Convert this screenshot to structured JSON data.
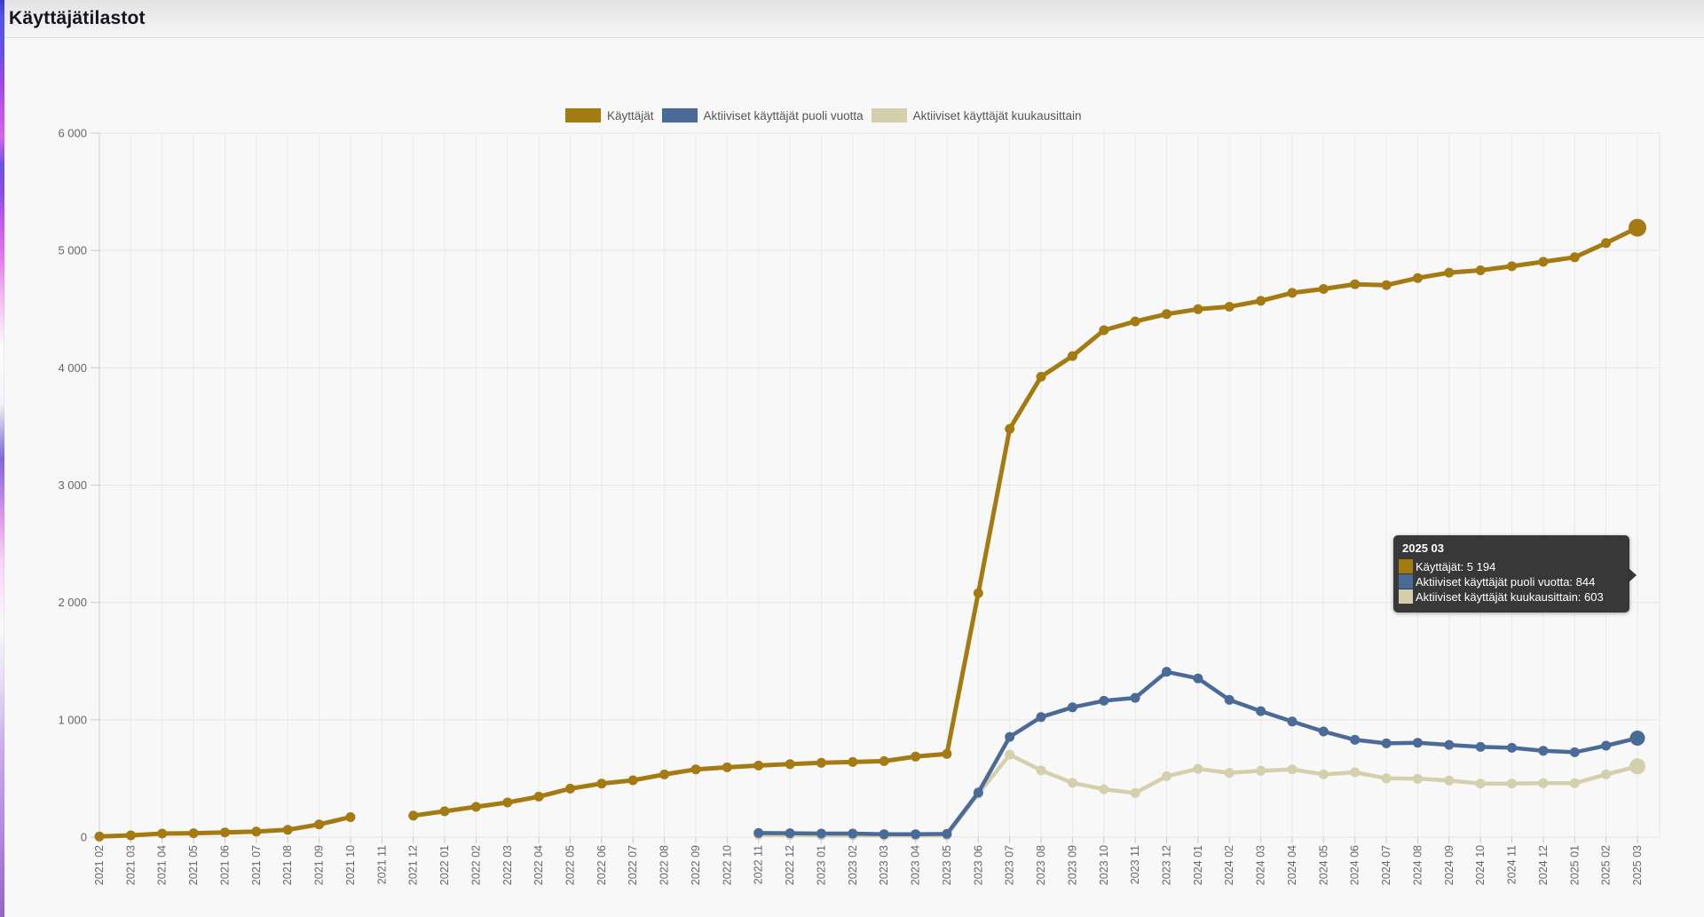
{
  "page": {
    "title": "Käyttäjätilastot"
  },
  "chart_data": {
    "type": "line",
    "title": "Käyttäjätilastot",
    "xlabel": "",
    "ylabel": "",
    "ylim": [
      0,
      6000
    ],
    "ytick_interval": 1000,
    "ytick_labels": [
      "0",
      "1 000",
      "2 000",
      "3 000",
      "4 000",
      "5 000",
      "6 000"
    ],
    "grid": true,
    "legend_position": "top",
    "categories": [
      "2021 02",
      "2021 03",
      "2021 04",
      "2021 05",
      "2021 06",
      "2021 07",
      "2021 08",
      "2021 09",
      "2021 10",
      "2021 11",
      "2021 12",
      "2022 01",
      "2022 02",
      "2022 03",
      "2022 04",
      "2022 05",
      "2022 06",
      "2022 07",
      "2022 08",
      "2022 09",
      "2022 10",
      "2022 11",
      "2022 12",
      "2023 01",
      "2023 02",
      "2023 03",
      "2023 04",
      "2023 05",
      "2023 06",
      "2023 07",
      "2023 08",
      "2023 09",
      "2023 10",
      "2023 11",
      "2023 12",
      "2024 01",
      "2024 02",
      "2024 03",
      "2024 04",
      "2024 05",
      "2024 06",
      "2024 07",
      "2024 08",
      "2024 09",
      "2024 10",
      "2024 11",
      "2024 12",
      "2025 01",
      "2025 02",
      "2025 03"
    ],
    "series": [
      {
        "name": "Käyttäjät",
        "color": "#a47a12",
        "values": [
          5,
          15,
          30,
          33,
          40,
          47,
          62,
          108,
          170,
          null,
          183,
          220,
          258,
          295,
          345,
          413,
          456,
          484,
          534,
          577,
          595,
          610,
          622,
          633,
          640,
          648,
          686,
          709,
          2080,
          3480,
          3924,
          4100,
          4320,
          4395,
          4458,
          4500,
          4521,
          4571,
          4639,
          4672,
          4712,
          4705,
          4765,
          4811,
          4831,
          4866,
          4904,
          4942,
          5063,
          5194
        ]
      },
      {
        "name": "Aktiiviset käyttäjät puoli vuotta",
        "color": "#4a6a97",
        "values": [
          null,
          null,
          null,
          null,
          null,
          null,
          null,
          null,
          null,
          null,
          null,
          null,
          null,
          null,
          null,
          null,
          null,
          null,
          null,
          null,
          null,
          35,
          33,
          30,
          30,
          25,
          25,
          27,
          380,
          854,
          1023,
          1106,
          1162,
          1187,
          1409,
          1353,
          1170,
          1074,
          985,
          900,
          829,
          799,
          804,
          786,
          769,
          761,
          736,
          723,
          779,
          844
        ]
      },
      {
        "name": "Aktiiviset käyttäjät kuukausittain",
        "color": "#d4cfad",
        "values": [
          null,
          null,
          null,
          null,
          null,
          null,
          null,
          null,
          null,
          null,
          null,
          null,
          null,
          null,
          null,
          null,
          null,
          null,
          null,
          null,
          null,
          20,
          18,
          15,
          15,
          12,
          12,
          15,
          368,
          703,
          569,
          463,
          408,
          376,
          519,
          582,
          548,
          565,
          577,
          534,
          552,
          501,
          497,
          482,
          456,
          456,
          459,
          459,
          534,
          603
        ]
      }
    ]
  },
  "tooltip": {
    "title": "2025 03",
    "rows": [
      {
        "text": "Käyttäjät: 5 194",
        "color": "#a47a12"
      },
      {
        "text": "Aktiiviset käyttäjät puoli vuotta: 844",
        "color": "#4a6a97"
      },
      {
        "text": "Aktiiviset käyttäjät kuukausittain: 603",
        "color": "#d4cfad"
      }
    ]
  }
}
